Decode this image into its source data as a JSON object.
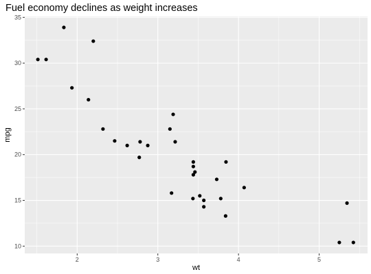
{
  "chart_data": {
    "type": "scatter",
    "title": "Fuel economy declines as weight increases",
    "xlabel": "wt",
    "ylabel": "mpg",
    "xlim": [
      1.35,
      5.6
    ],
    "ylim": [
      9.2,
      35.1
    ],
    "xticks": [
      2,
      3,
      4,
      5
    ],
    "yticks": [
      10,
      15,
      20,
      25,
      30,
      35
    ],
    "grid": true,
    "legend": "none",
    "colors": {
      "panel": "#ebebeb",
      "grid": "#ffffff",
      "point": "#000000",
      "tick": "#4d4d4d"
    },
    "points": [
      {
        "x": 2.62,
        "y": 21.0
      },
      {
        "x": 2.875,
        "y": 21.0
      },
      {
        "x": 2.32,
        "y": 22.8
      },
      {
        "x": 3.215,
        "y": 21.4
      },
      {
        "x": 3.44,
        "y": 18.7
      },
      {
        "x": 3.46,
        "y": 18.1
      },
      {
        "x": 3.57,
        "y": 14.3
      },
      {
        "x": 3.19,
        "y": 24.4
      },
      {
        "x": 3.15,
        "y": 22.8
      },
      {
        "x": 3.44,
        "y": 19.2
      },
      {
        "x": 3.44,
        "y": 17.8
      },
      {
        "x": 4.07,
        "y": 16.4
      },
      {
        "x": 3.73,
        "y": 17.3
      },
      {
        "x": 3.78,
        "y": 15.2
      },
      {
        "x": 5.25,
        "y": 10.4
      },
      {
        "x": 5.424,
        "y": 10.4
      },
      {
        "x": 5.345,
        "y": 14.7
      },
      {
        "x": 2.2,
        "y": 32.4
      },
      {
        "x": 1.615,
        "y": 30.4
      },
      {
        "x": 1.835,
        "y": 33.9
      },
      {
        "x": 2.465,
        "y": 21.5
      },
      {
        "x": 3.52,
        "y": 15.5
      },
      {
        "x": 3.435,
        "y": 15.2
      },
      {
        "x": 3.84,
        "y": 13.3
      },
      {
        "x": 3.845,
        "y": 19.2
      },
      {
        "x": 1.935,
        "y": 27.3
      },
      {
        "x": 2.14,
        "y": 26.0
      },
      {
        "x": 1.513,
        "y": 30.4
      },
      {
        "x": 3.17,
        "y": 15.8
      },
      {
        "x": 2.77,
        "y": 19.7
      },
      {
        "x": 3.57,
        "y": 15.0
      },
      {
        "x": 2.78,
        "y": 21.4
      }
    ]
  }
}
